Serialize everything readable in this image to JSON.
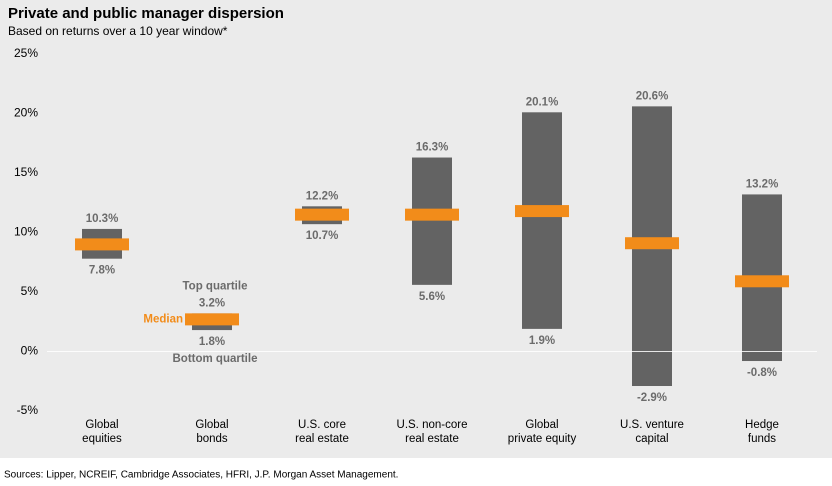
{
  "chart_data": {
    "type": "floating-range",
    "title": "Private and public manager dispersion",
    "subtitle": "Based on returns over a 10 year window*",
    "categories": [
      [
        "Global",
        "equities"
      ],
      [
        "Global",
        "bonds"
      ],
      [
        "U.S. core",
        "real estate"
      ],
      [
        "U.S. non-core",
        "real estate"
      ],
      [
        "Global",
        "private equity"
      ],
      [
        "U.S. venture",
        "capital"
      ],
      [
        "Hedge",
        "funds"
      ]
    ],
    "series": [
      {
        "name": "Top quartile",
        "color": "#636363",
        "values": [
          10.3,
          3.2,
          12.2,
          16.3,
          20.1,
          20.6,
          13.2
        ],
        "value_labels": [
          "10.3%",
          "3.2%",
          "12.2%",
          "16.3%",
          "20.1%",
          "20.6%",
          "13.2%"
        ]
      },
      {
        "name": "Bottom quartile",
        "color": "#636363",
        "values": [
          7.8,
          1.8,
          10.7,
          5.6,
          1.9,
          -2.9,
          -0.8
        ],
        "value_labels": [
          "7.8%",
          "1.8%",
          "10.7%",
          "5.6%",
          "1.9%",
          "-2.9%",
          "-0.8%"
        ]
      },
      {
        "name": "Median",
        "color": "#f28c1a",
        "values": [
          9.0,
          2.7,
          11.5,
          11.5,
          11.8,
          9.1,
          5.9
        ]
      }
    ],
    "ylim": [
      -5,
      25
    ],
    "yticks": [
      {
        "value": -5,
        "label": "-5%"
      },
      {
        "value": 0,
        "label": "0%"
      },
      {
        "value": 5,
        "label": "5%"
      },
      {
        "value": 10,
        "label": "10%"
      },
      {
        "value": 15,
        "label": "15%"
      },
      {
        "value": 20,
        "label": "20%"
      },
      {
        "value": 25,
        "label": "25%"
      }
    ],
    "source": "Sources: Lipper, NCREIF, Cambridge Associates, HFRI, J.P. Morgan Asset Management."
  }
}
